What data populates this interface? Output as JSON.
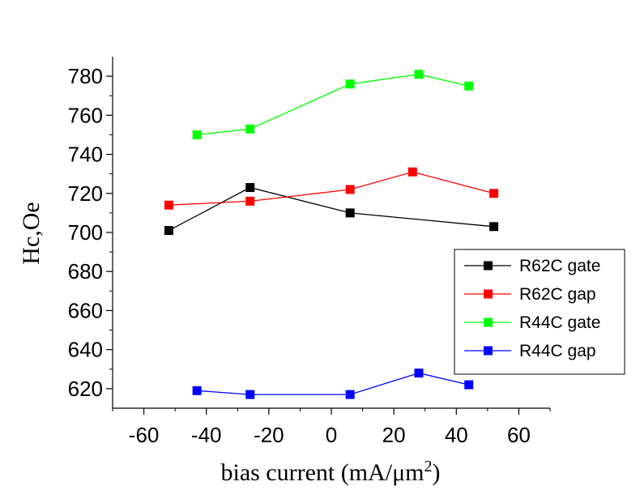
{
  "chart_data": {
    "type": "line",
    "title": "",
    "xlabel": "bias current (mA/μm",
    "xlabel_sup": "2",
    "xlabel_end": ")",
    "ylabel": "Hc,Oe",
    "xlim": [
      -70,
      70
    ],
    "ylim": [
      610,
      790
    ],
    "x_ticks": [
      -60,
      -40,
      -20,
      0,
      20,
      40,
      60
    ],
    "x_tick_labels": [
      "-60",
      "-40",
      "-20",
      "0",
      "20",
      "40",
      "60"
    ],
    "y_ticks": [
      620,
      640,
      660,
      680,
      700,
      720,
      740,
      760,
      780
    ],
    "y_tick_labels": [
      "620",
      "640",
      "660",
      "680",
      "700",
      "720",
      "740",
      "760",
      "780"
    ],
    "grid": false,
    "legend_position": "lower-right",
    "series": [
      {
        "name": "R62C gate",
        "color": "#000000",
        "x": [
          -52,
          -26,
          6,
          52
        ],
        "y": [
          701,
          723,
          710,
          703
        ]
      },
      {
        "name": "R62C gap",
        "color": "#ff0000",
        "x": [
          -52,
          -26,
          6,
          26,
          52
        ],
        "y": [
          714,
          716,
          722,
          731,
          720
        ]
      },
      {
        "name": "R44C gate",
        "color": "#00ff00",
        "x": [
          -43,
          -26,
          6,
          28,
          44
        ],
        "y": [
          750,
          753,
          776,
          781,
          775
        ]
      },
      {
        "name": "R44C gap",
        "color": "#0000ff",
        "x": [
          -43,
          -26,
          6,
          28,
          44
        ],
        "y": [
          619,
          617,
          617,
          628,
          622
        ]
      }
    ]
  }
}
